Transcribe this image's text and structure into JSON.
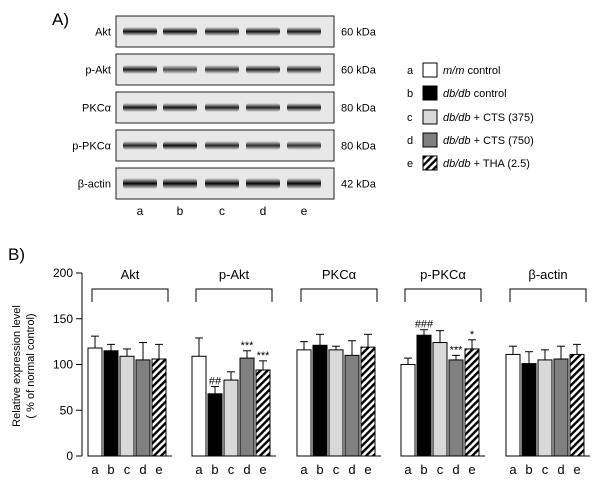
{
  "panel_a_label": "A)",
  "panel_b_label": "B)",
  "blots": [
    {
      "name": "Akt",
      "kda": "60 kDa"
    },
    {
      "name": "p-Akt",
      "kda": "60 kDa"
    },
    {
      "name": "PKCα",
      "kda": "80 kDa"
    },
    {
      "name": "p-PKCα",
      "kda": "80 kDa"
    },
    {
      "name": "β-actin",
      "kda": "42 kDa"
    }
  ],
  "lanes": [
    "a",
    "b",
    "c",
    "d",
    "e"
  ],
  "legend": [
    {
      "key": "a",
      "italic": "m/m",
      "rest": " control",
      "fill": "#ffffff",
      "pattern": "solid"
    },
    {
      "key": "b",
      "italic": "db/db",
      "rest": " control",
      "fill": "#000000",
      "pattern": "solid"
    },
    {
      "key": "c",
      "italic": "db/db",
      "rest": " + CTS (375)",
      "fill": "#d9d9d9",
      "pattern": "solid"
    },
    {
      "key": "d",
      "italic": "db/db",
      "rest": " + CTS (750)",
      "fill": "#808080",
      "pattern": "solid"
    },
    {
      "key": "e",
      "italic": "db/db",
      "rest": " + THA (2.5)",
      "fill": "#ffffff",
      "pattern": "hatch"
    }
  ],
  "chart_data": {
    "type": "bar",
    "ylabel": "Relative expression level",
    "ylabel2": "( % of normal control)",
    "ylim": [
      0,
      200
    ],
    "yticks": [
      0,
      50,
      100,
      150,
      200
    ],
    "categories": [
      "a",
      "b",
      "c",
      "d",
      "e"
    ],
    "groups": [
      {
        "title": "Akt",
        "values": [
          118,
          115,
          109,
          105,
          106
        ],
        "errors": [
          13,
          7,
          8,
          19,
          16
        ],
        "marks": [
          "",
          "",
          "",
          "",
          ""
        ]
      },
      {
        "title": "p-Akt",
        "values": [
          109,
          68,
          83,
          107,
          94
        ],
        "errors": [
          20,
          8,
          9,
          8,
          10
        ],
        "marks": [
          "",
          "##",
          "",
          "***",
          "***"
        ]
      },
      {
        "title": "PKCα",
        "values": [
          116,
          121,
          116,
          110,
          119
        ],
        "errors": [
          9,
          12,
          4,
          16,
          14
        ],
        "marks": [
          "",
          "",
          "",
          "",
          ""
        ]
      },
      {
        "title": "p-PKCα",
        "values": [
          100,
          132,
          124,
          105,
          117
        ],
        "errors": [
          7,
          6,
          13,
          5,
          10
        ],
        "marks": [
          "",
          "###",
          "",
          "***",
          "*"
        ]
      },
      {
        "title": "β-actin",
        "values": [
          111,
          101,
          105,
          106,
          111
        ],
        "errors": [
          9,
          13,
          11,
          14,
          11
        ],
        "marks": [
          "",
          "",
          "",
          "",
          ""
        ]
      }
    ]
  }
}
